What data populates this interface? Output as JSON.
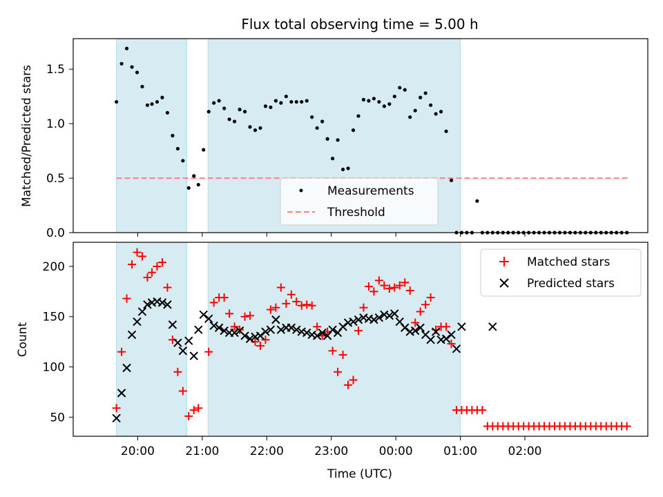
{
  "title": "Flux total observing time = 5.00 h",
  "xlabel": "Time (UTC)",
  "x_ticks": [
    "20:00",
    "21:00",
    "22:00",
    "23:00",
    "00:00",
    "01:00",
    "02:00"
  ],
  "colors": {
    "band": "#add8e6",
    "measurement": "#000000",
    "threshold": "#ff7f7f",
    "matched": "#ff0000",
    "predicted": "#000000"
  },
  "chart_data": [
    {
      "type": "scatter",
      "ylabel": "Matched/Predicted stars",
      "ylim": [
        0,
        1.78
      ],
      "yticks": [
        "0.0",
        "0.5",
        "1.0",
        "1.5"
      ],
      "ytick_values": [
        0,
        0.5,
        1.0,
        1.5
      ],
      "x_unit": "hours after 19:00 UTC",
      "shaded_intervals": [
        [
          0.67,
          1.76
        ],
        [
          2.09,
          6.0
        ]
      ],
      "legend": {
        "placement": "lower-center",
        "measurements": "Measurements",
        "threshold": "Threshold"
      },
      "threshold": {
        "value": 0.5,
        "x_range": [
          0.67,
          8.6
        ]
      },
      "series": [
        {
          "name": "Measurements",
          "x": [
            0.67,
            0.75,
            0.83,
            0.91,
            0.99,
            1.07,
            1.15,
            1.22,
            1.3,
            1.38,
            1.46,
            1.54,
            1.62,
            1.7,
            1.79,
            1.87,
            1.94,
            2.02,
            2.1,
            2.18,
            2.26,
            2.34,
            2.42,
            2.5,
            2.58,
            2.66,
            2.74,
            2.82,
            2.9,
            2.98,
            3.06,
            3.14,
            3.22,
            3.3,
            3.38,
            3.46,
            3.54,
            3.62,
            3.7,
            3.78,
            3.86,
            3.94,
            4.02,
            4.1,
            4.18,
            4.26,
            4.34,
            4.42,
            4.5,
            4.58,
            4.66,
            4.74,
            4.82,
            4.9,
            4.98,
            5.06,
            5.14,
            5.22,
            5.3,
            5.38,
            5.46,
            5.54,
            5.62,
            5.7,
            5.78,
            5.86,
            5.94,
            6.02,
            6.1,
            6.18,
            6.26,
            6.34,
            6.42,
            6.5,
            6.58,
            6.66,
            6.74,
            6.82,
            6.9,
            6.98,
            7.06,
            7.14,
            7.22,
            7.3,
            7.38,
            7.46,
            7.54,
            7.62,
            7.7,
            7.78,
            7.86,
            7.94,
            8.02,
            8.1,
            8.18,
            8.26,
            8.34,
            8.42,
            8.5,
            8.58
          ],
          "values": [
            1.2,
            1.55,
            1.69,
            1.52,
            1.47,
            1.34,
            1.17,
            1.18,
            1.2,
            1.24,
            1.1,
            0.89,
            0.77,
            0.66,
            0.41,
            0.52,
            0.44,
            0.76,
            1.11,
            1.19,
            1.21,
            1.14,
            1.04,
            1.02,
            1.13,
            1.11,
            0.97,
            0.94,
            0.96,
            1.16,
            1.15,
            1.21,
            1.19,
            1.25,
            1.2,
            1.2,
            1.2,
            1.21,
            1.06,
            0.96,
            1.02,
            0.86,
            0.68,
            0.85,
            0.58,
            0.59,
            0.94,
            1.07,
            1.22,
            1.21,
            1.23,
            1.2,
            1.16,
            1.18,
            1.25,
            1.33,
            1.31,
            1.06,
            1.12,
            1.24,
            1.28,
            1.17,
            1.09,
            1.11,
            0.93,
            0.48,
            0.0,
            0.0,
            0.0,
            0.0,
            0.29,
            0.0,
            0.0,
            0.0,
            0.0,
            0.0,
            0.0,
            0.0,
            0.0,
            0.0,
            0.0,
            0.0,
            0.0,
            0.0,
            0.0,
            0.0,
            0.0,
            0.0,
            0.0,
            0.0,
            0.0,
            0.0,
            0.0,
            0.0,
            0.0,
            0.0,
            0.0,
            0.0,
            0.0,
            0.0
          ]
        }
      ]
    },
    {
      "type": "scatter",
      "ylabel": "Count",
      "ylim": [
        31,
        224
      ],
      "yticks": [
        "50",
        "100",
        "150",
        "200"
      ],
      "ytick_values": [
        50,
        100,
        150,
        200
      ],
      "x_unit": "hours after 19:00 UTC",
      "shaded_intervals": [
        [
          0.67,
          1.76
        ],
        [
          2.09,
          6.0
        ]
      ],
      "legend": {
        "placement": "upper-right"
      },
      "series": [
        {
          "name": "Matched stars",
          "x": [
            0.67,
            0.75,
            0.83,
            0.91,
            0.99,
            1.07,
            1.15,
            1.22,
            1.3,
            1.38,
            1.46,
            1.54,
            1.62,
            1.7,
            1.79,
            1.87,
            1.94,
            2.1,
            2.18,
            2.26,
            2.34,
            2.42,
            2.5,
            2.58,
            2.66,
            2.74,
            2.82,
            2.9,
            2.98,
            3.06,
            3.14,
            3.22,
            3.3,
            3.38,
            3.46,
            3.54,
            3.62,
            3.7,
            3.78,
            3.86,
            3.94,
            4.02,
            4.1,
            4.18,
            4.26,
            4.34,
            4.42,
            4.5,
            4.58,
            4.66,
            4.74,
            4.82,
            4.9,
            4.98,
            5.06,
            5.14,
            5.22,
            5.3,
            5.38,
            5.46,
            5.54,
            5.62,
            5.7,
            5.78,
            5.86,
            5.94,
            6.02,
            6.1,
            6.18,
            6.26,
            6.34,
            6.42,
            6.5,
            6.58,
            6.66,
            6.74,
            6.82,
            6.9,
            6.98,
            7.06,
            7.14,
            7.22,
            7.3,
            7.38,
            7.46,
            7.54,
            7.62,
            7.7,
            7.78,
            7.86,
            7.94,
            8.02,
            8.1,
            8.18,
            8.26,
            8.34,
            8.42,
            8.5,
            8.58
          ],
          "values": [
            59,
            115,
            168,
            202,
            214,
            210,
            189,
            194,
            200,
            204,
            179,
            127,
            95,
            76,
            51,
            57,
            59,
            115,
            164,
            169,
            169,
            153,
            140,
            137,
            150,
            151,
            125,
            121,
            127,
            157,
            159,
            179,
            163,
            172,
            165,
            161,
            162,
            161,
            140,
            131,
            135,
            116,
            95,
            112,
            82,
            87,
            136,
            159,
            180,
            175,
            186,
            181,
            178,
            179,
            181,
            184,
            176,
            144,
            155,
            162,
            169,
            137,
            140,
            140,
            123,
            57,
            57,
            57,
            57,
            57,
            57,
            41,
            41,
            41,
            41,
            41,
            41,
            41,
            41,
            41,
            41,
            41,
            41,
            41,
            41,
            41,
            41,
            41,
            41,
            41,
            41,
            41,
            41,
            41,
            41,
            41,
            41,
            41,
            41
          ]
        },
        {
          "name": "Predicted stars",
          "x": [
            0.67,
            0.75,
            0.83,
            0.91,
            0.99,
            1.07,
            1.15,
            1.22,
            1.3,
            1.38,
            1.46,
            1.54,
            1.62,
            1.7,
            1.79,
            1.87,
            1.94,
            2.02,
            2.1,
            2.18,
            2.26,
            2.34,
            2.42,
            2.5,
            2.58,
            2.66,
            2.74,
            2.82,
            2.9,
            2.98,
            3.06,
            3.14,
            3.22,
            3.3,
            3.38,
            3.46,
            3.54,
            3.62,
            3.7,
            3.78,
            3.86,
            3.94,
            4.02,
            4.1,
            4.18,
            4.26,
            4.34,
            4.42,
            4.5,
            4.58,
            4.66,
            4.74,
            4.82,
            4.9,
            4.98,
            5.06,
            5.14,
            5.22,
            5.3,
            5.38,
            5.46,
            5.54,
            5.62,
            5.7,
            5.78,
            5.86,
            5.94,
            6.02,
            6.5
          ],
          "values": [
            49,
            74,
            99,
            132,
            145,
            155,
            162,
            164,
            165,
            164,
            162,
            142,
            124,
            116,
            126,
            111,
            137,
            152,
            148,
            141,
            139,
            136,
            134,
            134,
            136,
            131,
            128,
            130,
            131,
            135,
            137,
            147,
            137,
            139,
            139,
            137,
            135,
            134,
            132,
            131,
            134,
            131,
            137,
            134,
            140,
            144,
            145,
            147,
            149,
            148,
            147,
            149,
            152,
            151,
            153,
            145,
            139,
            135,
            136,
            139,
            132,
            127,
            135,
            127,
            128,
            132,
            118,
            140,
            140
          ]
        }
      ]
    }
  ]
}
